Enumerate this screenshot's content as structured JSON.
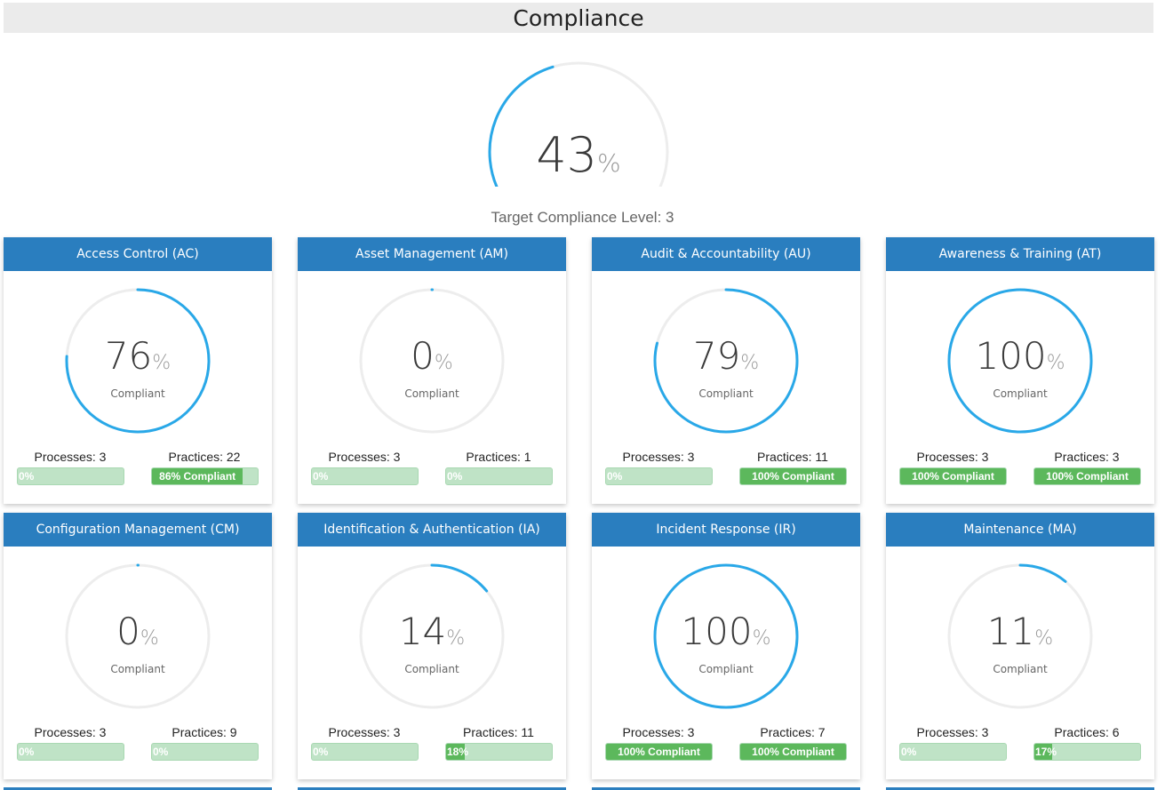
{
  "header": {
    "title": "Compliance"
  },
  "overall": {
    "value": 43,
    "value_text": "43",
    "pct_sign": "%",
    "target_text": "Target Compliance Level: 3"
  },
  "colors": {
    "header_blue": "#2a7ebf",
    "ring_blue": "#29a8e8",
    "ring_track": "#ededed",
    "bar_green": "#5cb85c",
    "bar_light": "#bfe3c6"
  },
  "compliant_label": "Compliant",
  "cards": [
    {
      "title": "Access Control (AC)",
      "value": 76,
      "value_text": "76",
      "pct_sign": "%",
      "processes_label": "Processes: 3",
      "practices_label": "Practices: 22",
      "processes_bar": {
        "value": 0,
        "text": "0%"
      },
      "practices_bar": {
        "value": 86,
        "text": "86% Compliant"
      }
    },
    {
      "title": "Asset Management (AM)",
      "value": 0,
      "value_text": "0",
      "pct_sign": "%",
      "processes_label": "Processes: 3",
      "practices_label": "Practices: 1",
      "processes_bar": {
        "value": 0,
        "text": "0%"
      },
      "practices_bar": {
        "value": 0,
        "text": "0%"
      }
    },
    {
      "title": "Audit & Accountability (AU)",
      "value": 79,
      "value_text": "79",
      "pct_sign": "%",
      "processes_label": "Processes: 3",
      "practices_label": "Practices: 11",
      "processes_bar": {
        "value": 0,
        "text": "0%"
      },
      "practices_bar": {
        "value": 100,
        "text": "100% Compliant"
      }
    },
    {
      "title": "Awareness & Training (AT)",
      "value": 100,
      "value_text": "100",
      "pct_sign": "%",
      "processes_label": "Processes: 3",
      "practices_label": "Practices: 3",
      "processes_bar": {
        "value": 100,
        "text": "100% Compliant"
      },
      "practices_bar": {
        "value": 100,
        "text": "100% Compliant"
      }
    },
    {
      "title": "Configuration Management (CM)",
      "value": 0,
      "value_text": "0",
      "pct_sign": "%",
      "processes_label": "Processes: 3",
      "practices_label": "Practices: 9",
      "processes_bar": {
        "value": 0,
        "text": "0%"
      },
      "practices_bar": {
        "value": 0,
        "text": "0%"
      }
    },
    {
      "title": "Identification & Authentication (IA)",
      "value": 14,
      "value_text": "14",
      "pct_sign": "%",
      "processes_label": "Processes: 3",
      "practices_label": "Practices: 11",
      "processes_bar": {
        "value": 0,
        "text": "0%"
      },
      "practices_bar": {
        "value": 18,
        "text": "18%"
      }
    },
    {
      "title": "Incident Response (IR)",
      "value": 100,
      "value_text": "100",
      "pct_sign": "%",
      "processes_label": "Processes: 3",
      "practices_label": "Practices: 7",
      "processes_bar": {
        "value": 100,
        "text": "100% Compliant"
      },
      "practices_bar": {
        "value": 100,
        "text": "100% Compliant"
      }
    },
    {
      "title": "Maintenance (MA)",
      "value": 11,
      "value_text": "11",
      "pct_sign": "%",
      "processes_label": "Processes: 3",
      "practices_label": "Practices: 6",
      "processes_bar": {
        "value": 0,
        "text": "0%"
      },
      "practices_bar": {
        "value": 17,
        "text": "17%"
      }
    }
  ]
}
